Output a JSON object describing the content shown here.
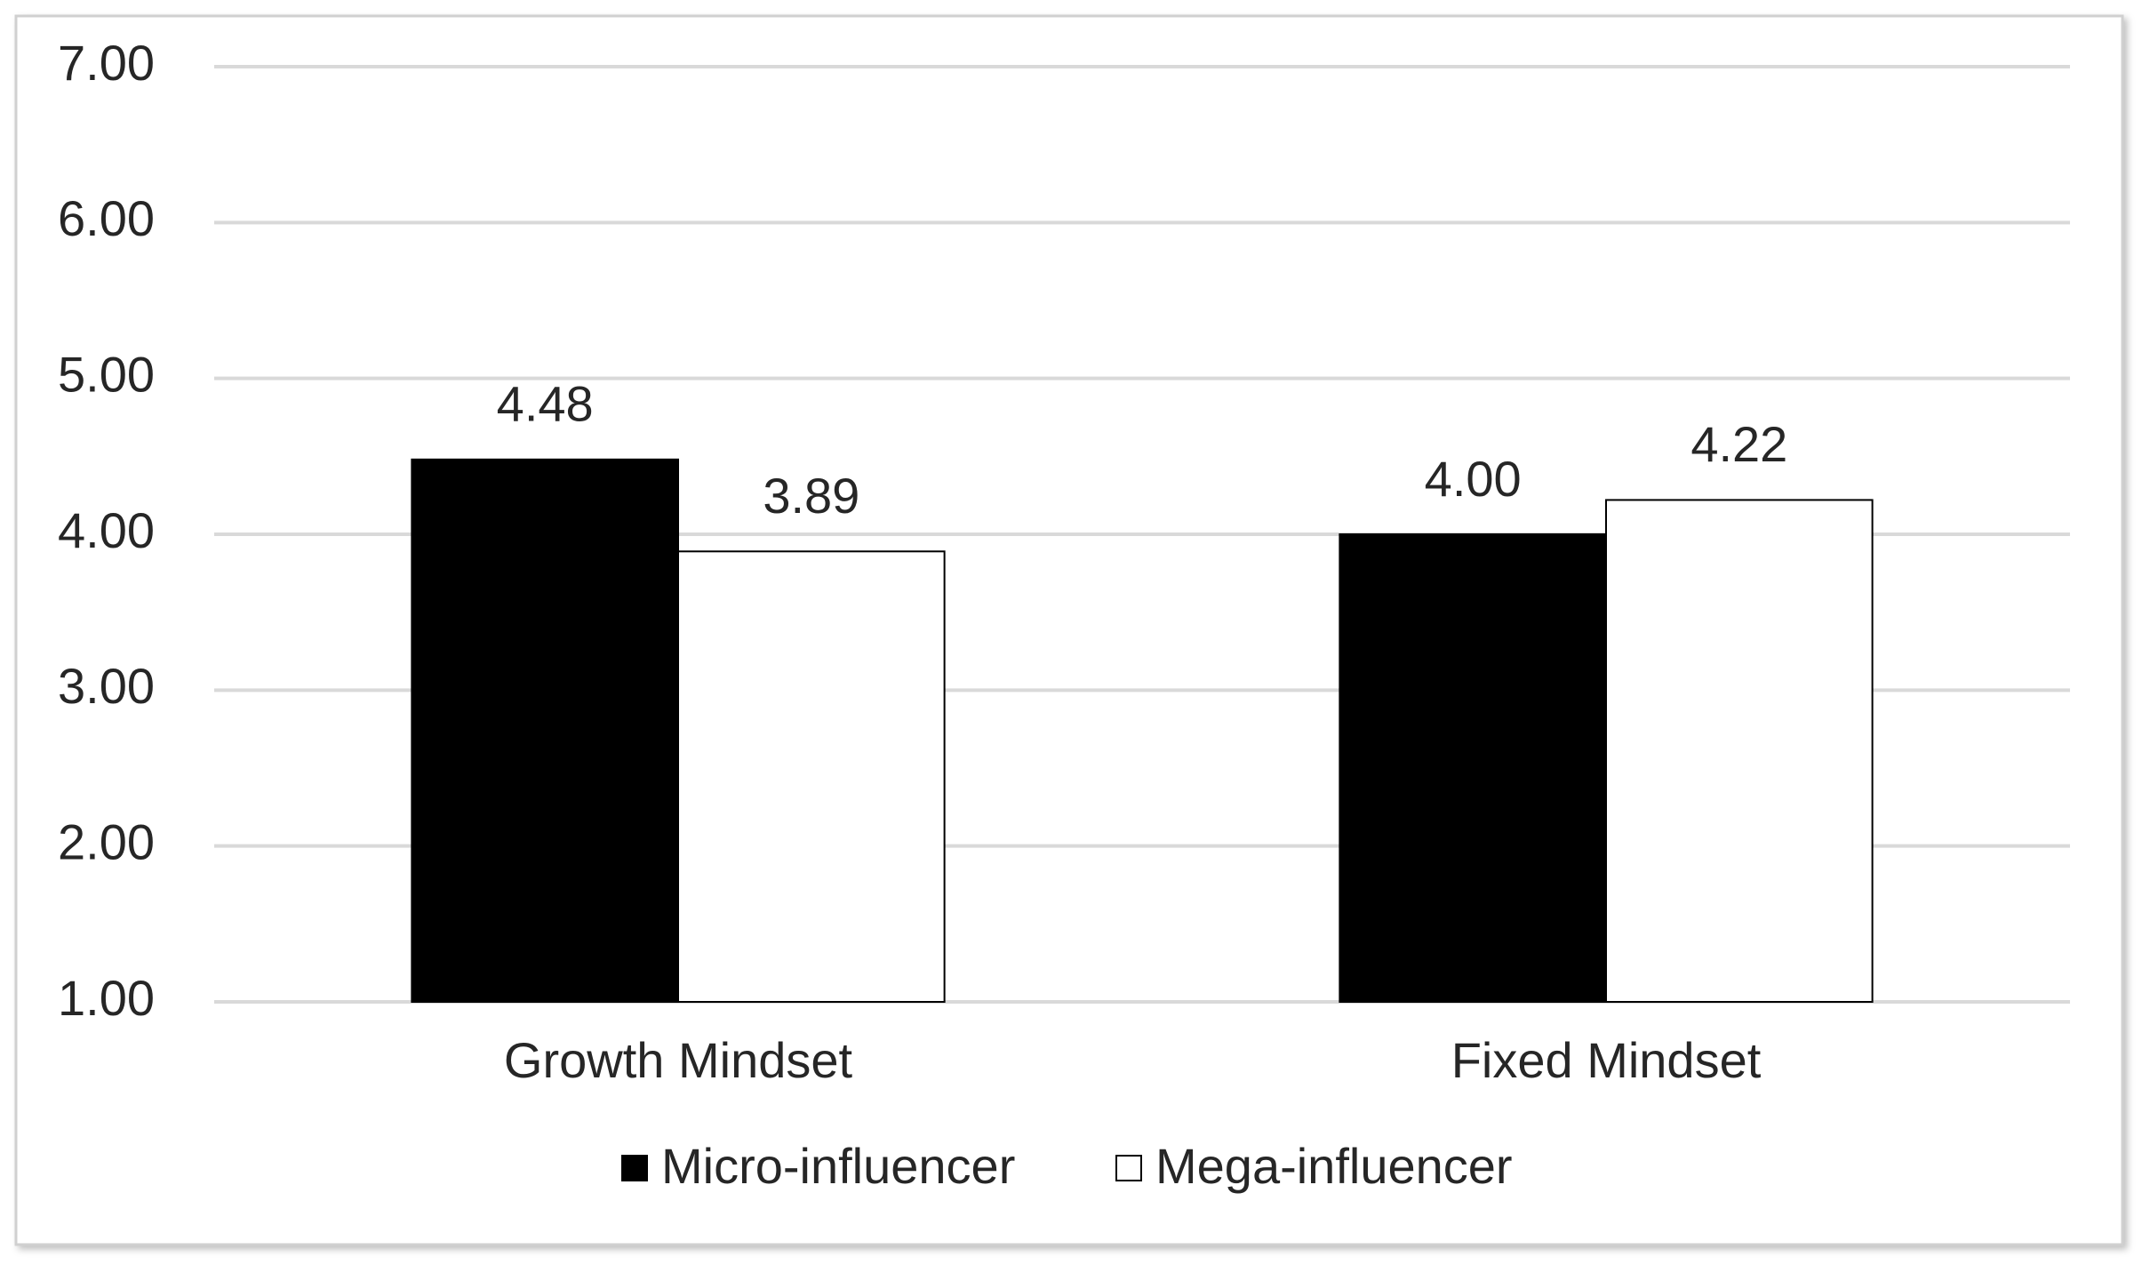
{
  "chart_data": {
    "type": "bar",
    "categories": [
      "Growth Mindset",
      "Fixed Mindset"
    ],
    "series": [
      {
        "name": "Micro-influencer",
        "color": "#000000",
        "values": [
          4.48,
          4.0
        ],
        "value_labels": [
          "4.48",
          "4.00"
        ]
      },
      {
        "name": "Mega-influencer",
        "color": "#ffffff",
        "values": [
          3.89,
          4.22
        ],
        "value_labels": [
          "3.89",
          "4.22"
        ]
      }
    ],
    "ylim": [
      1,
      7
    ],
    "yticks": [
      {
        "value": 1,
        "label": "1.00"
      },
      {
        "value": 2,
        "label": "2.00"
      },
      {
        "value": 3,
        "label": "3.00"
      },
      {
        "value": 4,
        "label": "4.00"
      },
      {
        "value": 5,
        "label": "5.00"
      },
      {
        "value": 6,
        "label": "6.00"
      },
      {
        "value": 7,
        "label": "7.00"
      }
    ],
    "grid": true,
    "legend": "bottom"
  }
}
